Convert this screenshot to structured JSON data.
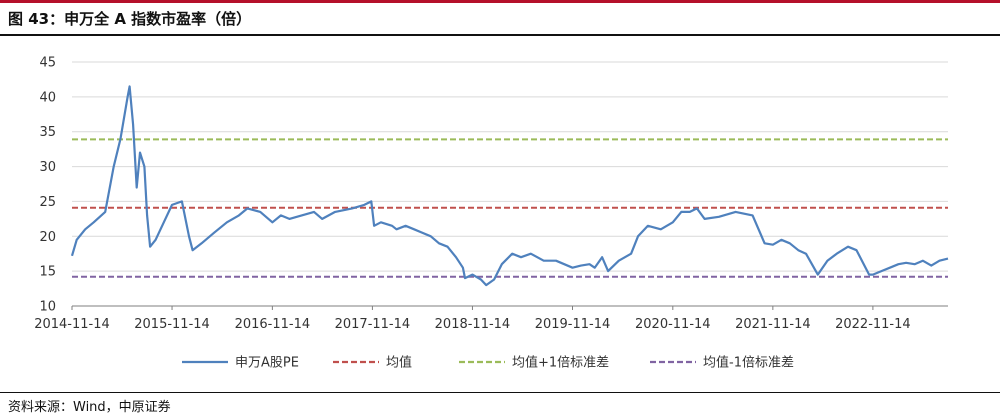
{
  "title": "图 43：申万全 A 指数市盈率（倍）",
  "source": "资料来源：Wind，中原证券",
  "chart_data": {
    "type": "line",
    "title": "图 43：申万全 A 指数市盈率（倍）",
    "xlabel": "",
    "ylabel": "",
    "ylim": [
      10,
      45
    ],
    "yticks": [
      "10",
      "15",
      "20",
      "25",
      "30",
      "35",
      "40",
      "45"
    ],
    "x_ticks": [
      "2014-11-14",
      "2015-11-14",
      "2016-11-14",
      "2017-11-14",
      "2018-11-14",
      "2019-11-14",
      "2020-11-14",
      "2021-11-14",
      "2022-11-14"
    ],
    "grid": "horizontal",
    "legend_position": "bottom",
    "colors": {
      "pe": "#4f81bd",
      "mean": "#c0504d",
      "upper": "#9bbb59",
      "lower": "#8064a2"
    },
    "series": [
      {
        "name": "申万A股PE",
        "style": "solid",
        "x": [
          "2014-11-14",
          "2014-12-01",
          "2015-01-01",
          "2015-02-01",
          "2015-03-15",
          "2015-04-15",
          "2015-05-10",
          "2015-06-05",
          "2015-06-12",
          "2015-06-25",
          "2015-07-08",
          "2015-07-20",
          "2015-08-05",
          "2015-08-15",
          "2015-08-26",
          "2015-09-15",
          "2015-10-15",
          "2015-11-14",
          "2015-12-20",
          "2016-01-15",
          "2016-01-28",
          "2016-03-01",
          "2016-04-15",
          "2016-06-01",
          "2016-07-15",
          "2016-08-15",
          "2016-10-01",
          "2016-11-14",
          "2016-12-15",
          "2017-01-15",
          "2017-03-01",
          "2017-04-15",
          "2017-05-15",
          "2017-07-01",
          "2017-09-01",
          "2017-10-15",
          "2017-11-10",
          "2017-11-20",
          "2017-12-15",
          "2018-01-25",
          "2018-02-10",
          "2018-03-15",
          "2018-04-15",
          "2018-05-15",
          "2018-06-15",
          "2018-07-15",
          "2018-08-15",
          "2018-09-15",
          "2018-10-10",
          "2018-10-18",
          "2018-11-14",
          "2018-12-15",
          "2019-01-03",
          "2019-02-01",
          "2019-03-01",
          "2019-04-08",
          "2019-05-10",
          "2019-06-15",
          "2019-08-01",
          "2019-09-15",
          "2019-11-14",
          "2019-12-15",
          "2020-01-15",
          "2020-02-03",
          "2020-03-01",
          "2020-03-23",
          "2020-05-01",
          "2020-06-15",
          "2020-07-10",
          "2020-08-15",
          "2020-10-01",
          "2020-11-14",
          "2020-12-15",
          "2021-01-15",
          "2021-02-10",
          "2021-03-10",
          "2021-05-01",
          "2021-07-01",
          "2021-09-01",
          "2021-10-15",
          "2021-11-14",
          "2021-12-15",
          "2022-01-15",
          "2022-02-15",
          "2022-03-15",
          "2022-04-27",
          "2022-06-01",
          "2022-07-05",
          "2022-08-15",
          "2022-09-15",
          "2022-10-31",
          "2022-11-14",
          "2022-12-15",
          "2023-01-15",
          "2023-02-15",
          "2023-03-15",
          "2023-04-15",
          "2023-05-15",
          "2023-06-15",
          "2023-07-15",
          "2023-08-15"
        ],
        "values": [
          17.2,
          19.5,
          21.0,
          22.0,
          23.5,
          30.0,
          34.0,
          40.0,
          41.5,
          36.0,
          27.0,
          32.0,
          30.0,
          23.0,
          18.5,
          19.5,
          22.0,
          24.5,
          25.0,
          20.0,
          18.0,
          19.0,
          20.5,
          22.0,
          23.0,
          24.0,
          23.5,
          22.0,
          23.0,
          22.5,
          23.0,
          23.5,
          22.5,
          23.5,
          24.0,
          24.5,
          25.0,
          21.5,
          22.0,
          21.5,
          21.0,
          21.5,
          21.0,
          20.5,
          20.0,
          19.0,
          18.5,
          17.0,
          15.5,
          14.0,
          14.5,
          13.8,
          13.0,
          13.8,
          16.0,
          17.5,
          17.0,
          17.5,
          16.5,
          16.5,
          15.5,
          15.8,
          16.0,
          15.5,
          17.0,
          15.0,
          16.5,
          17.5,
          20.0,
          21.5,
          21.0,
          22.0,
          23.5,
          23.5,
          24.0,
          22.5,
          22.8,
          23.5,
          23.0,
          19.0,
          18.8,
          19.5,
          19.0,
          18.0,
          17.5,
          14.5,
          16.5,
          17.5,
          18.5,
          18.0,
          14.5,
          14.5,
          15.0,
          15.5,
          16.0,
          16.2,
          16.0,
          16.5,
          15.8,
          16.5,
          16.8
        ]
      },
      {
        "name": "均值",
        "style": "dashed",
        "value": 24.1
      },
      {
        "name": "均值+1倍标准差",
        "style": "dashed",
        "value": 33.9
      },
      {
        "name": "均值-1倍标准差",
        "style": "dashed",
        "value": 14.2
      }
    ]
  }
}
